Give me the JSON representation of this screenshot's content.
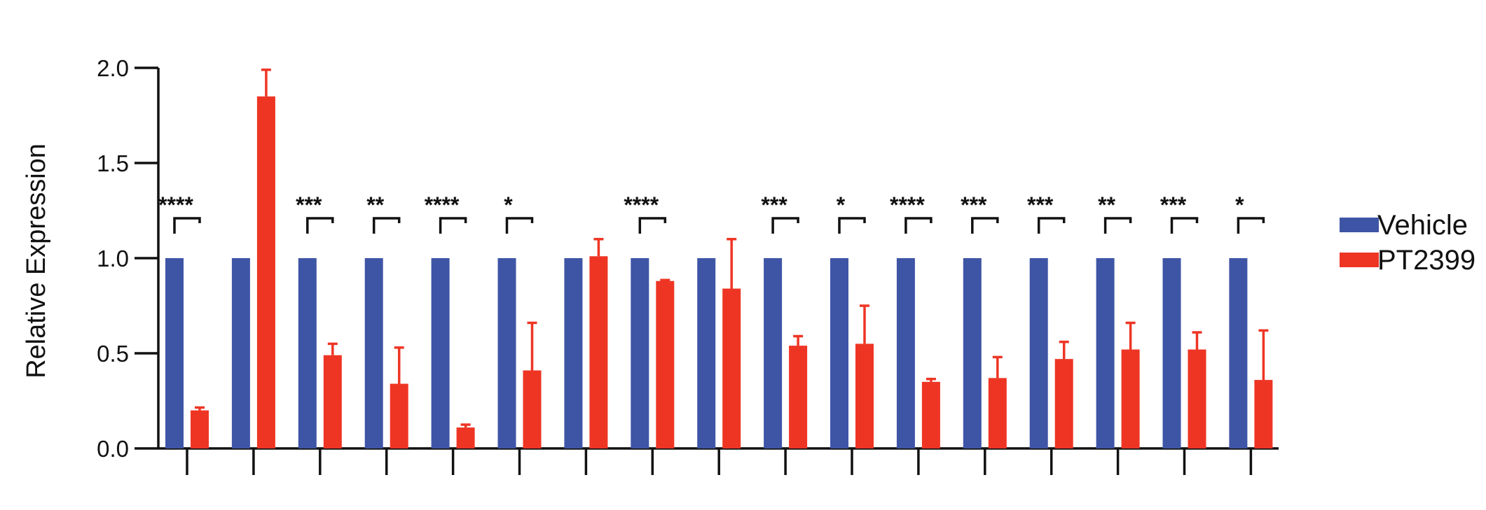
{
  "chart_data": {
    "type": "bar",
    "title": "",
    "xlabel": "",
    "ylabel": "Relative Expression",
    "ylim": [
      0,
      2.0
    ],
    "yticks": [
      "0.0",
      "0.5",
      "1.0",
      "1.5",
      "2.0"
    ],
    "categories": [
      "",
      "",
      "",
      "",
      "",
      "",
      "",
      "",
      "",
      "",
      "",
      "",
      "",
      "",
      "",
      "",
      ""
    ],
    "series": [
      {
        "name": "Vehicle",
        "color": "#3e55a6",
        "values": [
          1,
          1,
          1,
          1,
          1,
          1,
          1,
          1,
          1,
          1,
          1,
          1,
          1,
          1,
          1,
          1,
          1
        ]
      },
      {
        "name": "PT2399",
        "color": "#ee3524",
        "values": [
          0.2,
          1.85,
          0.49,
          0.34,
          0.11,
          0.41,
          1.01,
          0.88,
          0.84,
          0.54,
          0.55,
          0.35,
          0.37,
          0.47,
          0.52,
          0.52,
          0.36
        ],
        "errors": [
          0.015,
          0.14,
          0.06,
          0.19,
          0.015,
          0.25,
          0.09,
          0.005,
          0.26,
          0.05,
          0.2,
          0.015,
          0.11,
          0.09,
          0.14,
          0.09,
          0.26
        ]
      }
    ],
    "significance": [
      "****",
      "",
      "***",
      "**",
      "****",
      "*",
      "",
      "****",
      "",
      "***",
      "*",
      "****",
      "***",
      "***",
      "**",
      "***",
      "*"
    ],
    "legend": {
      "placement": "right"
    },
    "grid": false
  }
}
